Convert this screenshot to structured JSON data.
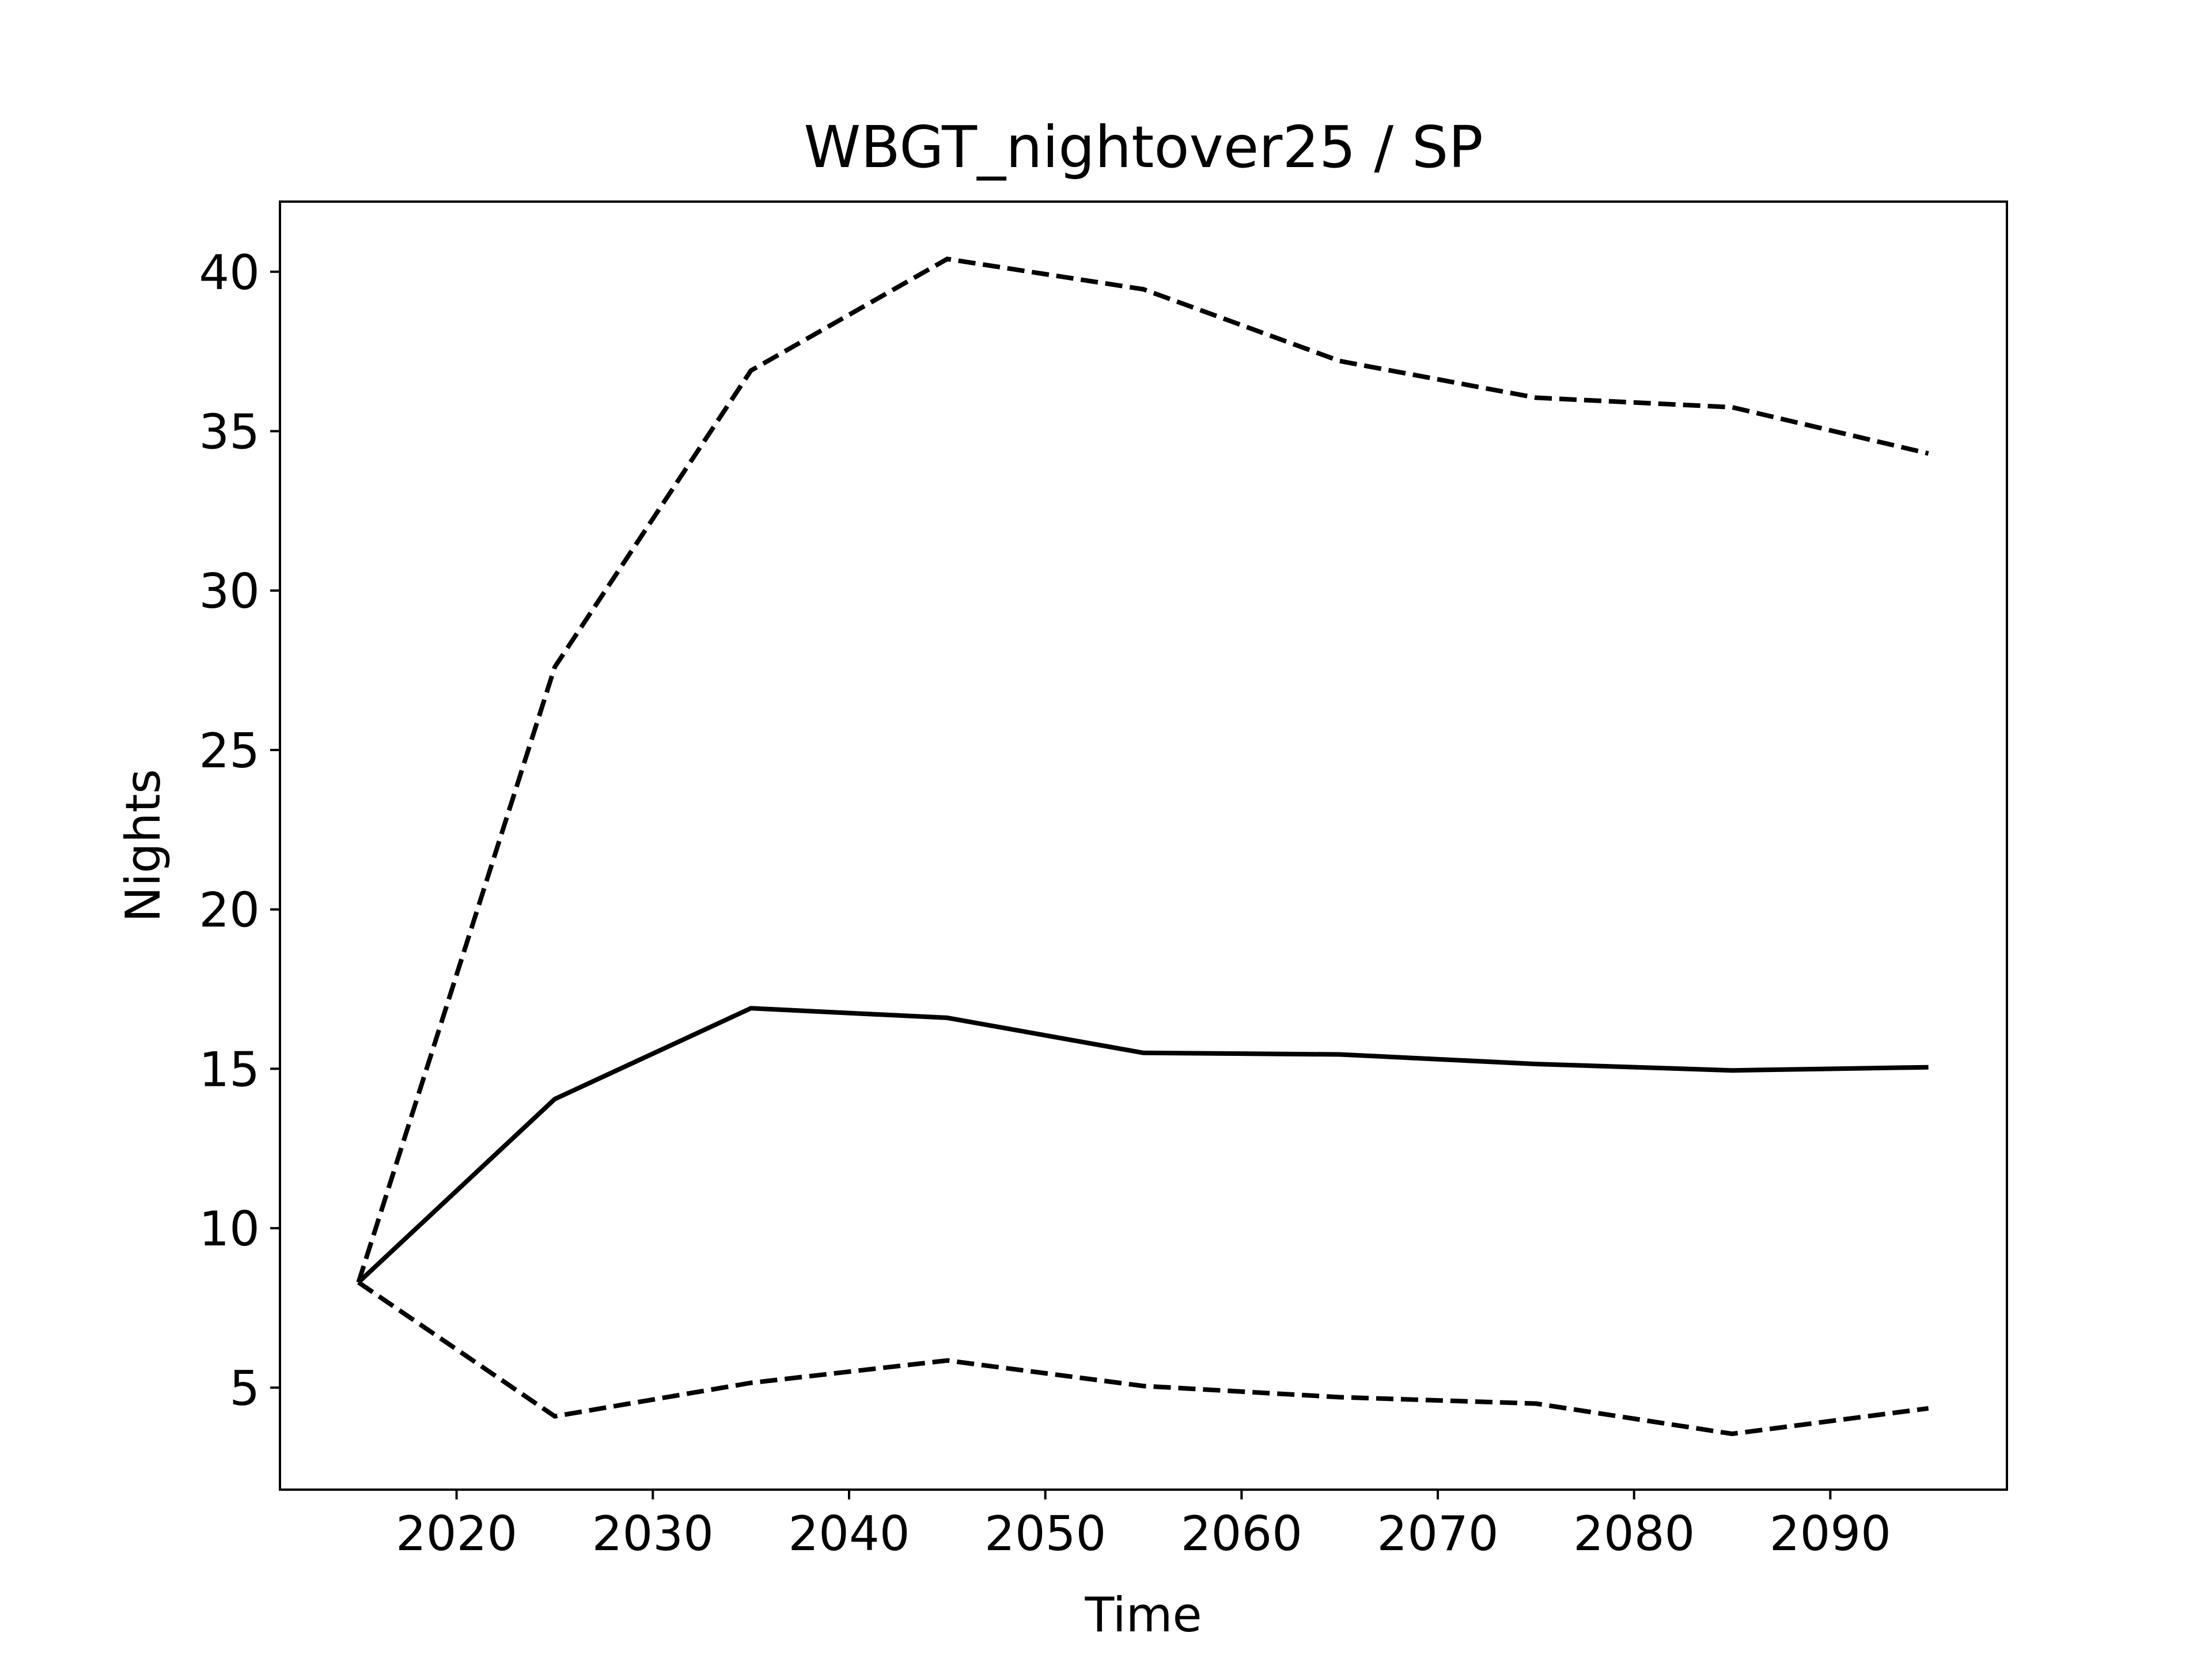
{
  "chart_data": {
    "type": "line",
    "title": "WBGT_nightover25 / SP",
    "xlabel": "Time",
    "ylabel": "Nights",
    "x": [
      2015,
      2025,
      2035,
      2045,
      2055,
      2065,
      2075,
      2085,
      2095
    ],
    "series": [
      {
        "style": "solid",
        "values": [
          8.3,
          14.05,
          16.9,
          16.6,
          15.5,
          15.45,
          15.15,
          14.95,
          15.05
        ]
      },
      {
        "style": "dashed",
        "values": [
          8.3,
          27.6,
          36.9,
          40.4,
          39.45,
          37.2,
          36.05,
          35.75,
          34.3
        ]
      },
      {
        "style": "dashed",
        "values": [
          8.3,
          4.1,
          5.15,
          5.85,
          5.05,
          4.7,
          4.5,
          3.55,
          4.35
        ]
      }
    ],
    "xlim": [
      2011,
      2099
    ],
    "ylim": [
      1.8,
      42.2
    ],
    "xticks": [
      2020,
      2030,
      2040,
      2050,
      2060,
      2070,
      2080,
      2090
    ],
    "yticks": [
      5,
      10,
      15,
      20,
      25,
      30,
      35,
      40
    ],
    "line_color": "#000000",
    "grid": false,
    "legend": false
  }
}
